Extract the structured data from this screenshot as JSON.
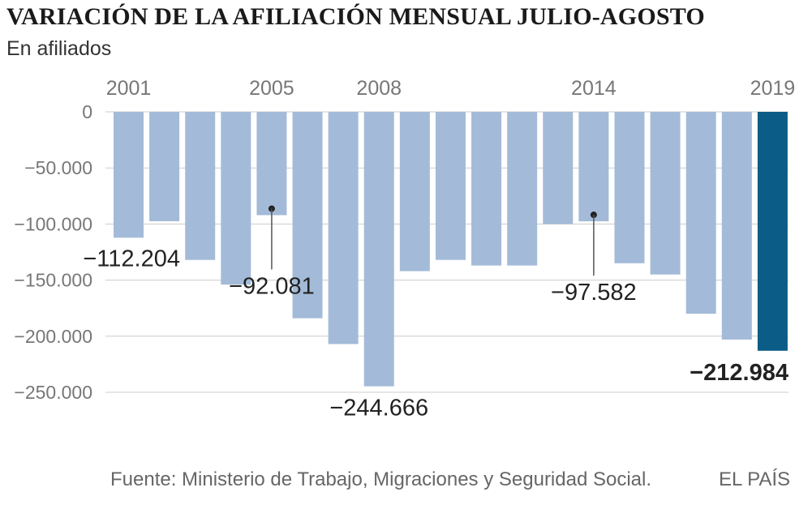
{
  "header": {
    "title": "VARIACIÓN DE LA AFILIACIÓN MENSUAL JULIO-AGOSTO",
    "subtitle": "En afiliados"
  },
  "footer": {
    "source": "Fuente: Ministerio de Trabajo, Migraciones y Seguridad Social.",
    "brand": "EL PAÍS"
  },
  "colors": {
    "bar": "#a3bbd8",
    "highlight": "#0b5c87",
    "grid": "#cccccc",
    "tick_text": "#777777",
    "annotation": "#222222"
  },
  "chart_data": {
    "type": "bar",
    "title": "VARIACIÓN DE LA AFILIACIÓN MENSUAL JULIO-AGOSTO",
    "subtitle": "En afiliados",
    "categories": [
      2001,
      2002,
      2003,
      2004,
      2005,
      2006,
      2007,
      2008,
      2009,
      2010,
      2011,
      2012,
      2013,
      2014,
      2015,
      2016,
      2017,
      2018,
      2019
    ],
    "values": [
      -112204,
      -97500,
      -132000,
      -154000,
      -92081,
      -184000,
      -207000,
      -244666,
      -142000,
      -132000,
      -137000,
      -137000,
      -100000,
      -97582,
      -135000,
      -145000,
      -180000,
      -203000,
      -212984
    ],
    "highlight_category": 2019,
    "x_tick_labels": [
      {
        "category": 2001,
        "label": "2001"
      },
      {
        "category": 2005,
        "label": "2005"
      },
      {
        "category": 2008,
        "label": "2008"
      },
      {
        "category": 2014,
        "label": "2014"
      },
      {
        "category": 2019,
        "label": "2019"
      }
    ],
    "y_ticks": [
      {
        "value": 0,
        "label": "0"
      },
      {
        "value": -50000,
        "label": "−50.000"
      },
      {
        "value": -100000,
        "label": "−100.000"
      },
      {
        "value": -150000,
        "label": "−150.000"
      },
      {
        "value": -200000,
        "label": "−200.000"
      },
      {
        "value": -250000,
        "label": "−250.000"
      }
    ],
    "ylim": [
      -250000,
      0
    ],
    "grid": true,
    "annotations": [
      {
        "category": 2001,
        "label": "−112.204",
        "placement": "left-below",
        "bold": false
      },
      {
        "category": 2005,
        "label": "−92.081",
        "placement": "leader",
        "bold": false
      },
      {
        "category": 2008,
        "label": "−244.666",
        "placement": "below",
        "bold": false
      },
      {
        "category": 2014,
        "label": "−97.582",
        "placement": "leader",
        "bold": false
      },
      {
        "category": 2019,
        "label": "−212.984",
        "placement": "below",
        "bold": true
      }
    ],
    "xlabel": "",
    "ylabel": ""
  }
}
